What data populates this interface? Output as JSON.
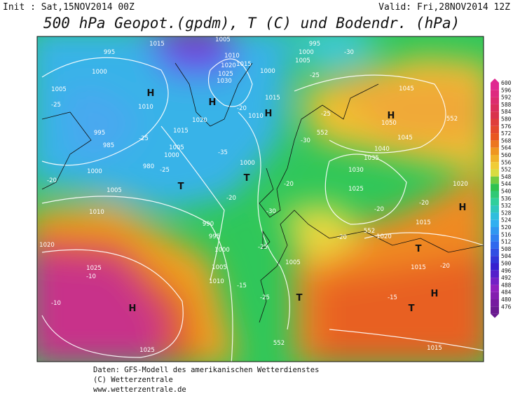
{
  "header": {
    "init": "Init : Sat,15NOV2014 00Z",
    "valid": "Valid: Fri,28NOV2014 12Z",
    "title": "500 hPa Geopot.(gpdm), T (C) und Bodendr. (hPa)"
  },
  "colorbar": {
    "labels": [
      600,
      596,
      592,
      588,
      584,
      580,
      576,
      572,
      568,
      564,
      560,
      556,
      552,
      548,
      544,
      540,
      536,
      532,
      528,
      524,
      520,
      516,
      512,
      508,
      504,
      500,
      496,
      492,
      488,
      484,
      480,
      476
    ]
  },
  "map": {
    "pressure_centers": [
      "H",
      "H",
      "H",
      "H",
      "H",
      "H",
      "H",
      "T",
      "T",
      "T",
      "T",
      "T"
    ],
    "isobars": [
      "995",
      "1000",
      "1005",
      "1010",
      "1015",
      "1020",
      "985",
      "995",
      "1000",
      "1005",
      "1010",
      "1020",
      "1025",
      "1025",
      "990",
      "995",
      "1000",
      "1005",
      "1010",
      "1015",
      "1010",
      "1000",
      "1005",
      "1030",
      "1025",
      "1035",
      "1040",
      "1045",
      "1045",
      "1050",
      "1020",
      "1015",
      "1015",
      "1015",
      "1020",
      "1010",
      "1020",
      "1025",
      "1030",
      "1015",
      "1015",
      "1005",
      "1000",
      "1005",
      "995",
      "1000",
      "980",
      "1005",
      "1000"
    ],
    "temperatures": [
      "-25",
      "-20",
      "-25",
      "-25",
      "-35",
      "-20",
      "-30",
      "-25",
      "-15",
      "-25",
      "-20",
      "-25",
      "-30",
      "-20",
      "-20",
      "-20",
      "-20",
      "-15",
      "-10",
      "-10",
      "-25",
      "-30",
      "-20"
    ],
    "geopotential": [
      "552",
      "552",
      "552",
      "552"
    ]
  },
  "footer": {
    "lines": [
      "Daten: GFS-Modell des amerikanischen Wetterdienstes",
      "(C) Wetterzentrale",
      "www.wetterzentrale.de"
    ]
  }
}
